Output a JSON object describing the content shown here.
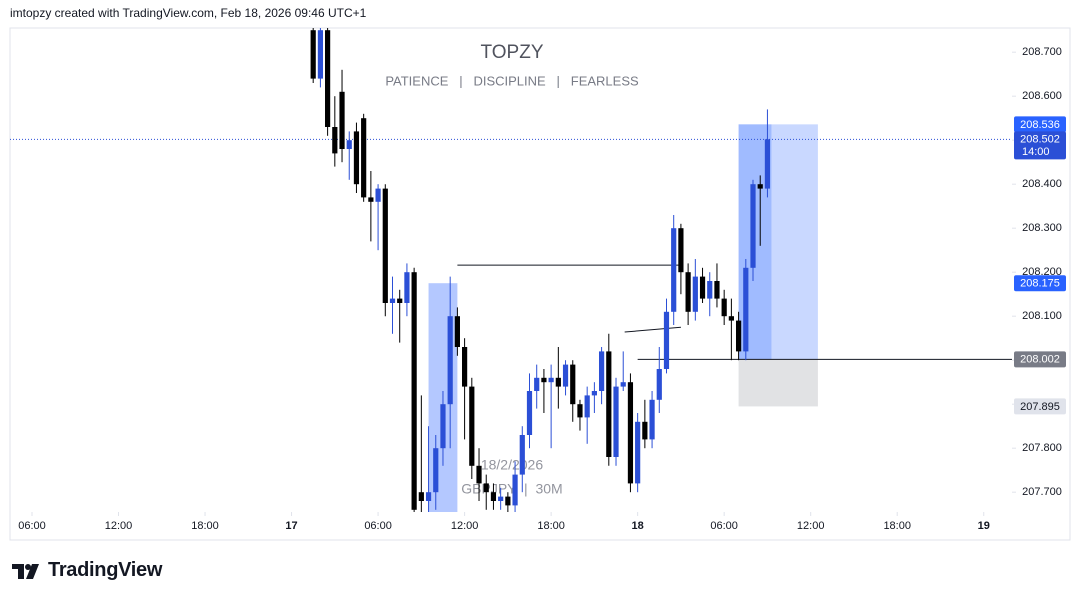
{
  "header": "imtopzy created with TradingView.com, Feb 18, 2026 09:46 UTC+1",
  "footer_brand": "TradingView",
  "chart_data": {
    "type": "candlestick",
    "title": "TOPZY",
    "subtitle": "PATIENCE   |   DISCIPLINE   |   FEARLESS",
    "watermark_date": "18/2/2026",
    "symbol": "GBPJPY  |  30M",
    "up_color": "#2b4fd6",
    "down_color": "#000000",
    "x": [
      25.5,
      26,
      26.5,
      27,
      27.5,
      28,
      28.5,
      29,
      29.5,
      30,
      30.5,
      31,
      31.5,
      32,
      32.5,
      33,
      33.5,
      34,
      34.5,
      35,
      35.5,
      36,
      36.5,
      37,
      37.5,
      38,
      38.5,
      39,
      39.5,
      40,
      40.5,
      41,
      41.5,
      42,
      42.5,
      43,
      43.5,
      44,
      44.5,
      45,
      45.5,
      46,
      46.5,
      47,
      47.5,
      48,
      48.5,
      49,
      49.5,
      50,
      50.5,
      51,
      51.5,
      52,
      52.5,
      53,
      53.5,
      54,
      54.5,
      55,
      55.5,
      56,
      56.5,
      57
    ],
    "open": [
      208.75,
      208.64,
      208.75,
      208.53,
      208.61,
      208.48,
      208.52,
      208.55,
      208.37,
      208.36,
      208.39,
      208.13,
      208.14,
      208.13,
      208.2,
      207.7,
      207.68,
      207.7,
      207.8,
      207.9,
      208.1,
      208.03,
      207.94,
      207.76,
      207.72,
      207.7,
      207.68,
      207.69,
      207.67,
      207.74,
      207.83,
      207.93,
      207.96,
      207.95,
      207.96,
      207.94,
      207.99,
      207.9,
      207.87,
      207.92,
      207.93,
      208.02,
      207.78,
      207.94,
      207.95,
      207.72,
      207.86,
      207.82,
      207.91,
      207.98,
      208.11,
      208.3,
      208.2,
      208.11,
      208.19,
      208.14,
      208.18,
      208.14,
      208.1,
      208.09,
      208.02,
      208.21,
      208.4,
      208.39
    ],
    "high": [
      208.755,
      208.755,
      208.755,
      208.6,
      208.66,
      208.52,
      208.54,
      208.56,
      208.43,
      208.4,
      208.4,
      208.19,
      208.16,
      208.22,
      208.21,
      207.92,
      207.85,
      207.83,
      207.93,
      208.19,
      208.12,
      208.05,
      207.96,
      207.8,
      207.74,
      207.72,
      207.71,
      207.7,
      207.77,
      207.85,
      207.97,
      207.99,
      207.98,
      207.99,
      208.03,
      208,
      208,
      207.91,
      207.94,
      207.95,
      208.03,
      208.06,
      207.96,
      208.02,
      207.97,
      207.88,
      207.91,
      207.93,
      208.03,
      208.14,
      208.33,
      208.31,
      208.22,
      208.23,
      208.21,
      208.2,
      208.22,
      208.16,
      208.14,
      208.11,
      208.23,
      208.41,
      208.42,
      208.57
    ],
    "low": [
      208.63,
      208.62,
      208.51,
      208.44,
      208.45,
      208.41,
      208.38,
      208.36,
      208.27,
      208.25,
      208.1,
      208.06,
      208.04,
      208.1,
      207.655,
      207.655,
      207.655,
      207.66,
      207.76,
      207.8,
      208.01,
      207.82,
      207.73,
      207.68,
      207.66,
      207.66,
      207.66,
      207.655,
      207.655,
      207.7,
      207.8,
      207.89,
      207.88,
      207.8,
      207.89,
      207.92,
      207.86,
      207.84,
      207.81,
      207.88,
      207.9,
      207.76,
      207.76,
      207.93,
      207.7,
      207.7,
      207.8,
      207.8,
      207.88,
      207.97,
      208.08,
      208.15,
      208.08,
      208.09,
      208.13,
      208.1,
      208.12,
      208.08,
      208,
      208,
      208,
      208.18,
      208.26,
      208.37
    ],
    "close": [
      208.64,
      208.75,
      208.53,
      208.47,
      208.48,
      208.5,
      208.4,
      208.37,
      208.36,
      208.39,
      208.13,
      208.14,
      208.13,
      208.2,
      207.66,
      207.68,
      207.7,
      207.8,
      207.9,
      208.1,
      208.03,
      207.94,
      207.76,
      207.72,
      207.7,
      207.68,
      207.69,
      207.67,
      207.74,
      207.83,
      207.93,
      207.96,
      207.95,
      207.96,
      207.94,
      207.99,
      207.9,
      207.87,
      207.92,
      207.93,
      208.02,
      207.78,
      207.94,
      207.95,
      207.72,
      207.86,
      207.82,
      207.91,
      207.98,
      208.11,
      208.3,
      208.2,
      208.11,
      208.19,
      208.14,
      208.18,
      208.14,
      208.1,
      208.09,
      208.02,
      208.21,
      208.4,
      208.39,
      208.502
    ],
    "xlim": [
      4.475,
      73.96
    ],
    "xticks": [
      {
        "value": 6,
        "label": "06:00"
      },
      {
        "value": 12,
        "label": "12:00"
      },
      {
        "value": 18,
        "label": "18:00"
      },
      {
        "value": 24,
        "label": "17"
      },
      {
        "value": 30,
        "label": "06:00"
      },
      {
        "value": 36,
        "label": "12:00"
      },
      {
        "value": 42,
        "label": "18:00"
      },
      {
        "value": 48,
        "label": "18"
      },
      {
        "value": 54,
        "label": "06:00"
      },
      {
        "value": 60,
        "label": "12:00"
      },
      {
        "value": 66,
        "label": "18:00"
      },
      {
        "value": 72,
        "label": "19"
      }
    ],
    "ylim": [
      207.655,
      208.755
    ],
    "yticks": [
      {
        "value": 207.7,
        "label": "207.700"
      },
      {
        "value": 207.8,
        "label": "207.800"
      },
      {
        "value": 207.9,
        "label": "207.900"
      },
      {
        "value": 208,
        "label": "208.000"
      },
      {
        "value": 208.1,
        "label": "208.100"
      },
      {
        "value": 208.2,
        "label": "208.200"
      },
      {
        "value": 208.3,
        "label": "208.300"
      },
      {
        "value": 208.4,
        "label": "208.400"
      },
      {
        "value": 208.5,
        "label": "208.500"
      },
      {
        "value": 208.6,
        "label": "208.600"
      },
      {
        "value": 208.7,
        "label": "208.700"
      }
    ],
    "last_price": 208.502,
    "countdown": "14:00",
    "short_zone": {
      "x": [
        33.5,
        35.5
      ],
      "top": 208.175
    },
    "long_position": {
      "x": [
        55,
        60.5
      ],
      "entry": 208.002,
      "target": 208.536,
      "stop": 207.895
    },
    "lines": [
      {
        "x": [
          35.5,
          51
        ],
        "y": [
          208.216,
          208.216
        ]
      },
      {
        "x": [
          47.1,
          51
        ],
        "y": [
          208.064,
          208.075
        ]
      },
      {
        "x": [
          48,
          73.96
        ],
        "y": [
          208.002,
          208.002
        ]
      }
    ]
  }
}
